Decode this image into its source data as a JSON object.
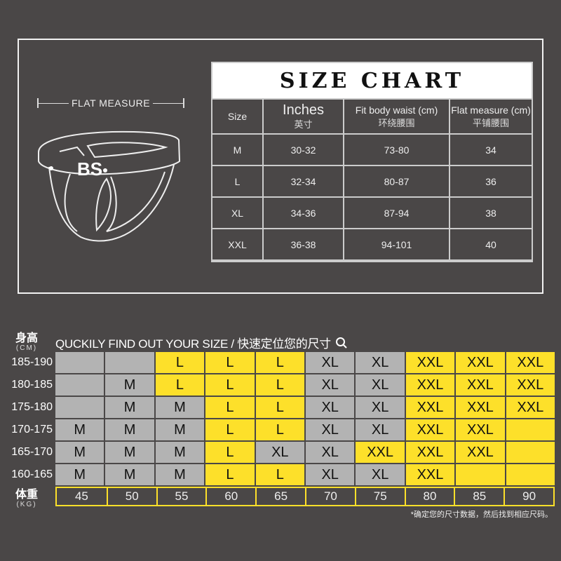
{
  "flat_measure_label": "FLAT  MEASURE",
  "logo_text": "BS",
  "size_chart": {
    "title": "SIZE CHART",
    "headers": [
      {
        "en": "Size",
        "cn": ""
      },
      {
        "en": "Inches",
        "cn": "英寸"
      },
      {
        "en": "Fit body waist (cm)",
        "cn": "环绕腰围"
      },
      {
        "en": "Flat measure (cm)",
        "cn": "平铺腰围"
      }
    ],
    "rows": [
      [
        "M",
        "30-32",
        "73-80",
        "34"
      ],
      [
        "L",
        "32-34",
        "80-87",
        "36"
      ],
      [
        "XL",
        "34-36",
        "87-94",
        "38"
      ],
      [
        "XXL",
        "36-38",
        "94-101",
        "40"
      ]
    ]
  },
  "finder": {
    "title": "QUCKILY FIND OUT YOUR SIZE / 快速定位您的尺寸",
    "search_icon": "search-icon",
    "height_label": "身高",
    "height_unit": "(CM)",
    "weight_label": "体重",
    "weight_unit": "(KG)",
    "colors": {
      "highlight": "#fde02a",
      "neutral": "#b3b3b3"
    },
    "weights": [
      "45",
      "50",
      "55",
      "60",
      "65",
      "70",
      "75",
      "80",
      "85",
      "90"
    ],
    "rows": [
      {
        "height": "185-190",
        "cells": [
          [
            "",
            0
          ],
          [
            "",
            0
          ],
          [
            "L",
            1
          ],
          [
            "L",
            1
          ],
          [
            "L",
            1
          ],
          [
            "XL",
            0
          ],
          [
            "XL",
            0
          ],
          [
            "XXL",
            1
          ],
          [
            "XXL",
            1
          ],
          [
            "XXL",
            1
          ]
        ]
      },
      {
        "height": "180-185",
        "cells": [
          [
            "",
            0
          ],
          [
            "M",
            0
          ],
          [
            "L",
            1
          ],
          [
            "L",
            1
          ],
          [
            "L",
            1
          ],
          [
            "XL",
            0
          ],
          [
            "XL",
            0
          ],
          [
            "XXL",
            1
          ],
          [
            "XXL",
            1
          ],
          [
            "XXL",
            1
          ]
        ]
      },
      {
        "height": "175-180",
        "cells": [
          [
            "",
            0
          ],
          [
            "M",
            0
          ],
          [
            "M",
            0
          ],
          [
            "L",
            1
          ],
          [
            "L",
            1
          ],
          [
            "XL",
            0
          ],
          [
            "XL",
            0
          ],
          [
            "XXL",
            1
          ],
          [
            "XXL",
            1
          ],
          [
            "XXL",
            1
          ]
        ]
      },
      {
        "height": "170-175",
        "cells": [
          [
            "M",
            0
          ],
          [
            "M",
            0
          ],
          [
            "M",
            0
          ],
          [
            "L",
            1
          ],
          [
            "L",
            1
          ],
          [
            "XL",
            0
          ],
          [
            "XL",
            0
          ],
          [
            "XXL",
            1
          ],
          [
            "XXL",
            1
          ],
          [
            "",
            1
          ]
        ]
      },
      {
        "height": "165-170",
        "cells": [
          [
            "M",
            0
          ],
          [
            "M",
            0
          ],
          [
            "M",
            0
          ],
          [
            "L",
            1
          ],
          [
            "XL",
            0
          ],
          [
            "XL",
            0
          ],
          [
            "XXL",
            1
          ],
          [
            "XXL",
            1
          ],
          [
            "XXL",
            1
          ],
          [
            "",
            1
          ]
        ]
      },
      {
        "height": "160-165",
        "cells": [
          [
            "M",
            0
          ],
          [
            "M",
            0
          ],
          [
            "M",
            0
          ],
          [
            "L",
            1
          ],
          [
            "L",
            1
          ],
          [
            "XL",
            0
          ],
          [
            "XL",
            0
          ],
          [
            "XXL",
            1
          ],
          [
            "",
            1
          ],
          [
            "",
            1
          ]
        ]
      }
    ],
    "note": "*确定您的尺寸数据，然后找到相应尺码。"
  }
}
